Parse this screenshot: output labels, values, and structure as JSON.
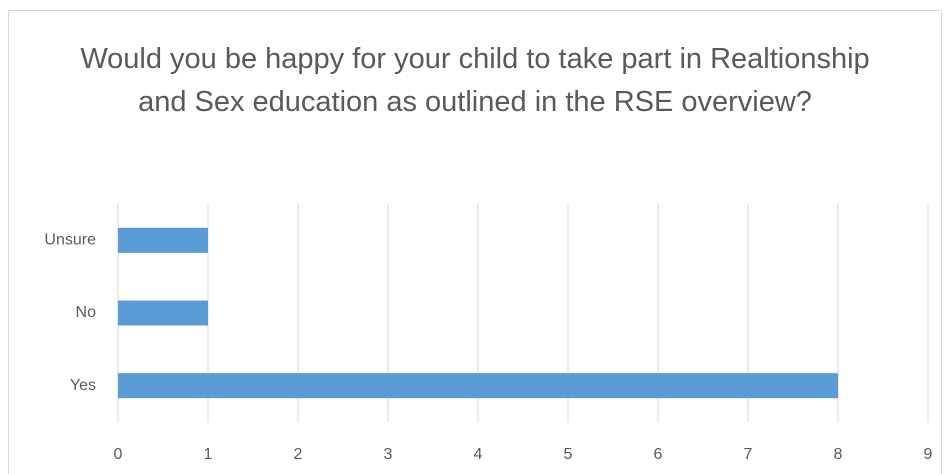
{
  "chart_data": {
    "type": "bar",
    "orientation": "horizontal",
    "title": "Would you be happy for your child to take part in Realtionship and Sex education as outlined in the RSE overview?",
    "categories": [
      "Yes",
      "No",
      "Unsure"
    ],
    "values": [
      8,
      1,
      1
    ],
    "color": "#5b9bd5",
    "xlim": [
      0,
      9
    ],
    "xticks": [
      0,
      1,
      2,
      3,
      4,
      5,
      6,
      7,
      8,
      9
    ],
    "grid": true
  }
}
